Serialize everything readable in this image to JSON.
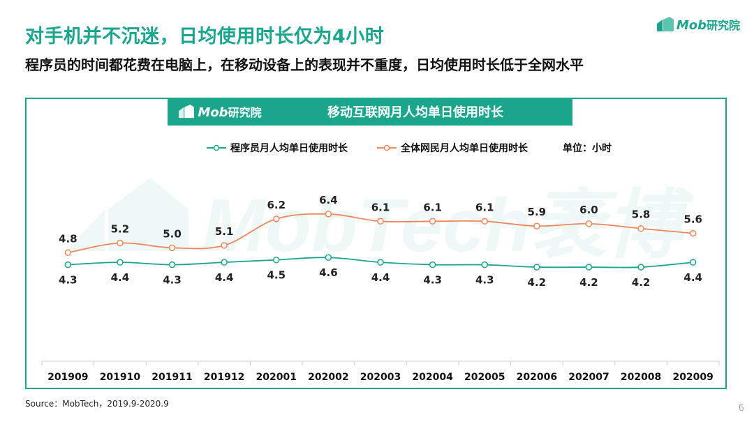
{
  "header": {
    "title": "对手机并不沉迷，日均使用时长仅为4小时",
    "subtitle": "程序员的时间都花费在电脑上，在移动设备上的表现并不重度，日均使用时长低于全网水平"
  },
  "brand": {
    "latin": "Mob",
    "cn": "研究院",
    "watermark": "MobTech袤博"
  },
  "chart_data": {
    "type": "line",
    "title": "移动互联网月人均单日使用时长",
    "unit_label": "单位：小时",
    "categories": [
      "201909",
      "201910",
      "201911",
      "201912",
      "202001",
      "202002",
      "202003",
      "202004",
      "202005",
      "202006",
      "202007",
      "202008",
      "202009"
    ],
    "series": [
      {
        "name": "程序员月人均单日使用时长",
        "color": "#1aa58d",
        "values": [
          4.3,
          4.4,
          4.3,
          4.4,
          4.5,
          4.6,
          4.4,
          4.3,
          4.3,
          4.2,
          4.2,
          4.2,
          4.4
        ]
      },
      {
        "name": "全体网民月人均单日使用时长",
        "color": "#f0875a",
        "values": [
          4.8,
          5.2,
          5.0,
          5.1,
          6.2,
          6.4,
          6.1,
          6.1,
          6.1,
          5.9,
          6.0,
          5.8,
          5.6
        ]
      }
    ],
    "grid": false,
    "legend": "top"
  },
  "footer": {
    "source": "Source：MobTech，2019.9-2020.9",
    "page": "6"
  }
}
